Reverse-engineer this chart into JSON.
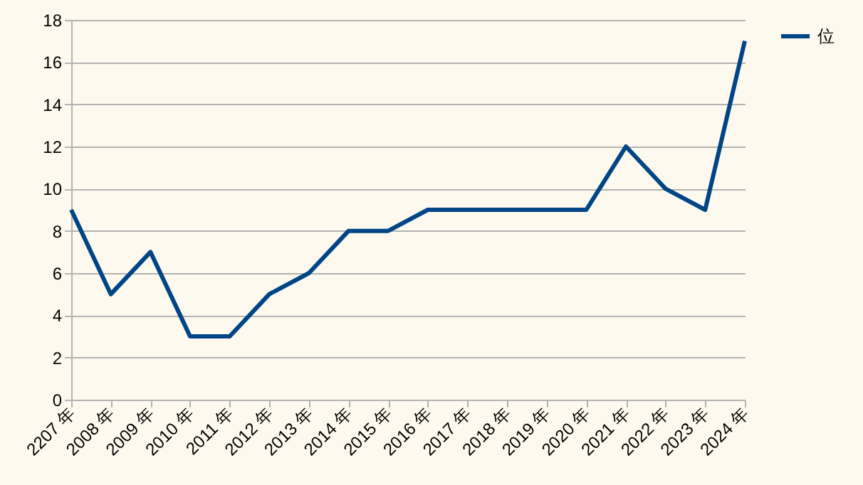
{
  "chart_data": {
    "type": "line",
    "categories": [
      "2207 年",
      "2008 年",
      "2009 年",
      "2010 年",
      "2011 年",
      "2012 年",
      "2013 年",
      "2014 年",
      "2015 年",
      "2016 年",
      "2017 年",
      "2018 年",
      "2019 年",
      "2020 年",
      "2021 年",
      "2022 年",
      "2023 年",
      "2024 年"
    ],
    "series": [
      {
        "name": "位",
        "color": "#004586",
        "values": [
          9,
          5,
          7,
          3,
          3,
          5,
          6,
          8,
          8,
          9,
          9,
          9,
          9,
          9,
          12,
          10,
          9,
          17
        ]
      }
    ],
    "ylim": [
      0,
      18
    ],
    "yticks": [
      0,
      2,
      4,
      6,
      8,
      10,
      12,
      14,
      16,
      18
    ],
    "grid": "y",
    "legend": "right",
    "marker": "none",
    "line_style": "solid"
  }
}
